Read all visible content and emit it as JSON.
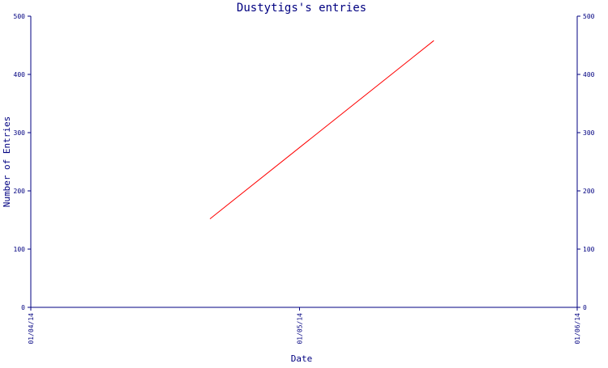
{
  "chart_data": {
    "type": "line",
    "title": "Dustytigs's entries",
    "xlabel": "Date",
    "ylabel": "Number of Entries",
    "x_ticks": [
      "01/04/14",
      "01/05/14",
      "01/06/14"
    ],
    "y_ticks": [
      0,
      100,
      200,
      300,
      400,
      500
    ],
    "ylim": [
      0,
      500
    ],
    "grid": false,
    "series": [
      {
        "color": "#ff0000",
        "points": [
          {
            "x": "2014-04-21",
            "y": 152
          },
          {
            "x": "2014-05-16",
            "y": 458
          }
        ]
      }
    ]
  },
  "colors": {
    "axis": "#000080",
    "text": "#000080",
    "background": "#ffffff"
  }
}
